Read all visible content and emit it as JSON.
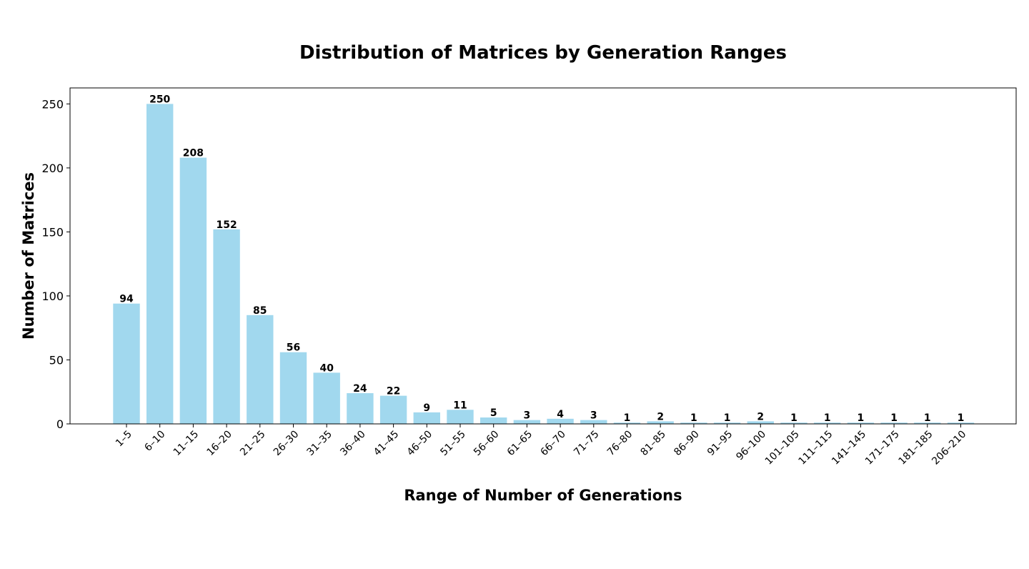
{
  "chart_data": {
    "type": "bar",
    "title": "Distribution of Matrices by Generation Ranges",
    "xlabel": "Range of Number of Generations",
    "ylabel": "Number of Matrices",
    "categories": [
      "1–5",
      "6–10",
      "11–15",
      "16–20",
      "21–25",
      "26–30",
      "31–35",
      "36–40",
      "41–45",
      "46–50",
      "51–55",
      "56–60",
      "61–65",
      "66–70",
      "71–75",
      "76–80",
      "81–85",
      "86–90",
      "91–95",
      "96–100",
      "101–105",
      "111–115",
      "141–145",
      "171–175",
      "181–185",
      "206–210"
    ],
    "values": [
      94,
      250,
      208,
      152,
      85,
      56,
      40,
      24,
      22,
      9,
      11,
      5,
      3,
      4,
      3,
      1,
      2,
      1,
      1,
      2,
      1,
      1,
      1,
      1,
      1,
      1
    ],
    "ylim": [
      0,
      262.5
    ],
    "yticks": [
      0,
      50,
      100,
      150,
      200,
      250
    ],
    "grid": false,
    "bar_color": "#a1d8ee",
    "x_tick_rotation": 45
  }
}
